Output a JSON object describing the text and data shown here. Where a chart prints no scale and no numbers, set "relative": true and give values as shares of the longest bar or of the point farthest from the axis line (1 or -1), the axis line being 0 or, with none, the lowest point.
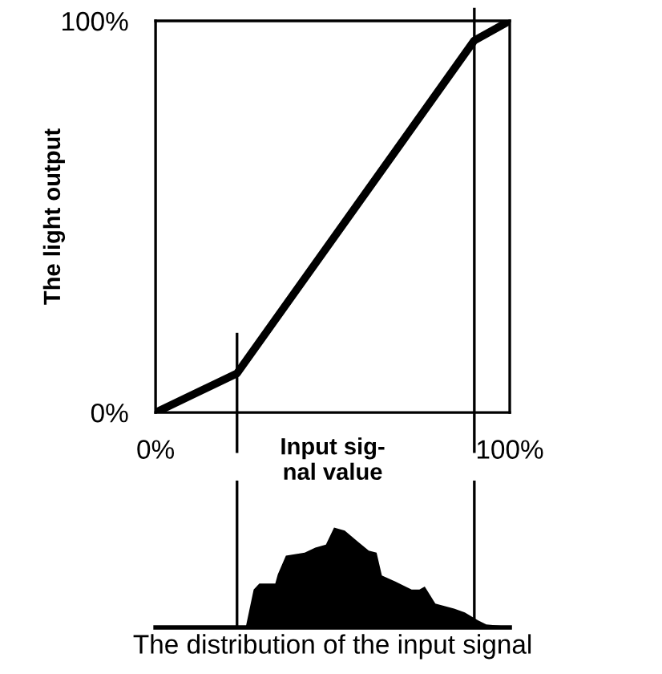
{
  "chart_data": [
    {
      "type": "line",
      "x": [
        0,
        23,
        90,
        100
      ],
      "values": [
        0,
        10,
        95,
        100
      ],
      "color": "#000000",
      "xlim": [
        0,
        100
      ],
      "ylim": [
        0,
        100
      ],
      "xticks": [
        {
          "value": 0,
          "label": "0%"
        },
        {
          "value": 100,
          "label": "100%"
        }
      ],
      "yticks": [
        {
          "value": 0,
          "label": "0%"
        },
        {
          "value": 100,
          "label": "100%"
        }
      ],
      "xlabel": "Input sig-\nnal value",
      "ylabel": "The light output",
      "marker": "none",
      "line_style": "solid",
      "ref_lines": [
        {
          "axis": "x",
          "value": 23,
          "color": "#000000"
        },
        {
          "axis": "x",
          "value": 90,
          "color": "#000000"
        }
      ]
    },
    {
      "type": "area",
      "relative": true,
      "color": "#000000",
      "xlim": [
        0,
        100
      ],
      "xlabel": "The distribution of the input signal",
      "x": [
        0,
        22.5,
        25.5,
        27.7,
        29.3,
        33.8,
        34.5,
        36.8,
        42.1,
        45.1,
        48.1,
        50.4,
        53.4,
        57.1,
        60.2,
        62.4,
        63.9,
        67.7,
        72.3,
        74.5,
        76.0,
        79.0,
        84.3,
        87.3,
        91.1,
        93.4,
        99.4,
        100
      ],
      "values": [
        0,
        0,
        0.01,
        0.38,
        0.44,
        0.44,
        0.53,
        0.72,
        0.75,
        0.8,
        0.83,
        1.0,
        0.97,
        0.86,
        0.77,
        0.75,
        0.52,
        0.46,
        0.38,
        0.38,
        0.41,
        0.24,
        0.19,
        0.15,
        0.07,
        0.03,
        0.01,
        0
      ],
      "ref_lines": [
        {
          "axis": "x",
          "value": 23,
          "color": "#000000"
        },
        {
          "axis": "x",
          "value": 90,
          "color": "#000000"
        }
      ]
    }
  ]
}
